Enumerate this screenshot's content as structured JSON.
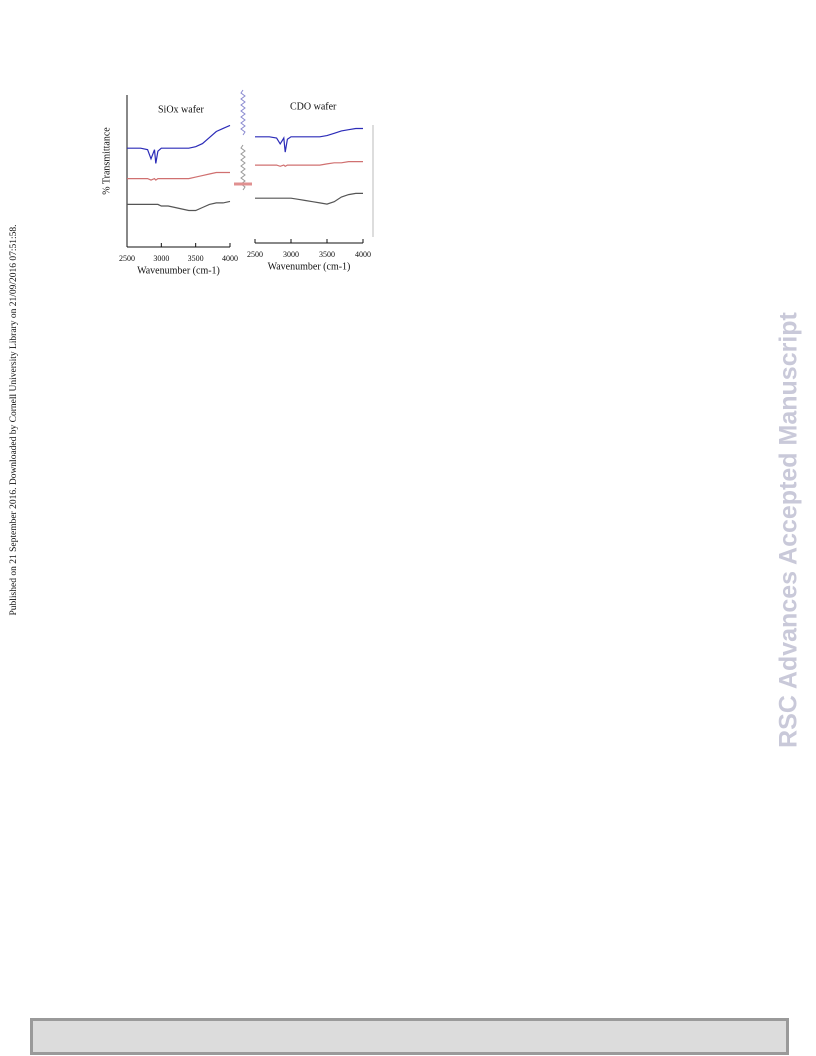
{
  "sidebar_note": "Published on 21 September 2016. Downloaded by Cornell University Library on 21/09/2016 07:51:58.",
  "watermark": "RSC Advances Accepted Manuscript",
  "chart_data": [
    {
      "type": "line",
      "title": "SiOx wafer",
      "x_label": "Wavenumber (cm-1)",
      "y_label": "% Transmittance",
      "x": [
        2500,
        2600,
        2700,
        2800,
        2850,
        2900,
        2920,
        2950,
        3000,
        3100,
        3200,
        3300,
        3400,
        3500,
        3600,
        3700,
        3800,
        3900,
        4000
      ],
      "xlim": [
        2500,
        4000
      ],
      "xticks": [
        2500,
        3000,
        3500,
        4000
      ],
      "ylim": [
        0,
        100
      ],
      "series": [
        {
          "color": "#2b2bb8",
          "values": [
            65,
            65,
            65,
            64,
            58,
            64,
            55,
            63,
            65,
            65,
            65,
            65,
            65,
            66,
            68,
            72,
            76,
            78,
            80
          ]
        },
        {
          "color": "#d07070",
          "values": [
            45,
            45,
            45,
            45,
            44,
            45,
            44,
            45,
            45,
            45,
            45,
            45,
            45,
            46,
            47,
            48,
            49,
            49,
            49
          ]
        },
        {
          "color": "#555555",
          "values": [
            28,
            28,
            28,
            28,
            28,
            28,
            28,
            28,
            27,
            27,
            26,
            25,
            24,
            24,
            26,
            28,
            29,
            29,
            30
          ]
        }
      ]
    },
    {
      "type": "line",
      "title": "CDO wafer",
      "x_label": "Wavenumber (cm-1)",
      "x": [
        2500,
        2600,
        2700,
        2800,
        2850,
        2900,
        2920,
        2950,
        3000,
        3100,
        3200,
        3300,
        3400,
        3500,
        3600,
        3700,
        3800,
        3900,
        4000
      ],
      "xlim": [
        2500,
        4000
      ],
      "xticks": [
        2500,
        3000,
        3500,
        4000
      ],
      "ylim": [
        0,
        100
      ],
      "series": [
        {
          "color": "#2b2bb8",
          "values": [
            90,
            90,
            90,
            89,
            84,
            89,
            77,
            88,
            90,
            90,
            90,
            90,
            90,
            91,
            93,
            95,
            96,
            97,
            97
          ]
        },
        {
          "color": "#d07070",
          "values": [
            66,
            66,
            66,
            66,
            65,
            66,
            65,
            66,
            66,
            66,
            66,
            66,
            66,
            67,
            68,
            68,
            69,
            69,
            69
          ]
        },
        {
          "color": "#555555",
          "values": [
            38,
            38,
            38,
            38,
            38,
            38,
            38,
            38,
            38,
            37,
            36,
            35,
            34,
            33,
            35,
            39,
            41,
            42,
            42
          ]
        }
      ]
    }
  ]
}
